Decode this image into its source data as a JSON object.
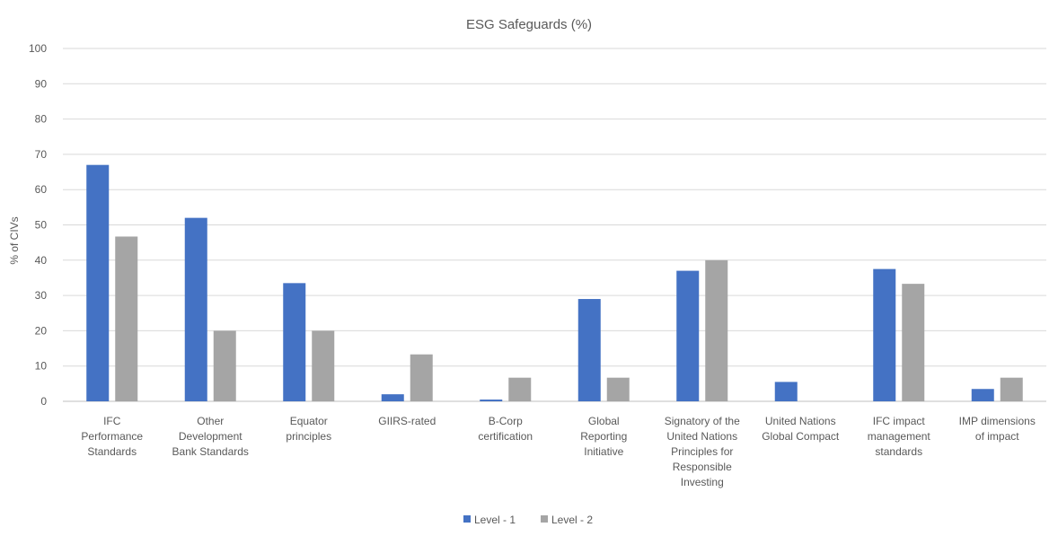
{
  "chart_data": {
    "type": "bar",
    "title": "ESG Safeguards (%)",
    "ylabel": "% of CIVs",
    "xlabel": "",
    "ylim": [
      0,
      100
    ],
    "yticks": [
      0,
      10,
      20,
      30,
      40,
      50,
      60,
      70,
      80,
      90,
      100
    ],
    "grid": true,
    "legend_position": "bottom-center",
    "categories": [
      "IFC Performance Standards",
      "Other Development Bank Standards",
      "Equator principles",
      "GIIRS-rated",
      "B-Corp certification",
      "Global Reporting Initiative",
      "Signatory of the United Nations Principles for Responsible Investing",
      "United Nations Global Compact",
      "IFC impact management standards",
      "IMP dimensions of impact"
    ],
    "category_lines": [
      [
        "IFC",
        "Performance",
        "Standards"
      ],
      [
        "Other",
        "Development",
        "Bank Standards"
      ],
      [
        "Equator",
        "principles"
      ],
      [
        "GIIRS-rated"
      ],
      [
        "B-Corp",
        "certification"
      ],
      [
        "Global",
        "Reporting",
        "Initiative"
      ],
      [
        "Signatory of the",
        "United Nations",
        "Principles for",
        "Responsible",
        "Investing"
      ],
      [
        "United Nations",
        "Global Compact"
      ],
      [
        "IFC impact",
        "management",
        "standards"
      ],
      [
        "IMP dimensions",
        "of impact"
      ]
    ],
    "series": [
      {
        "name": "Level - 1",
        "color": "#4472C4",
        "values": [
          67,
          52,
          33.5,
          2,
          0.5,
          29,
          37,
          5.5,
          37.5,
          3.5
        ]
      },
      {
        "name": "Level - 2",
        "color": "#A5A5A5",
        "values": [
          46.7,
          20,
          20,
          13.3,
          6.7,
          6.7,
          40,
          0,
          33.3,
          6.7
        ]
      }
    ]
  }
}
